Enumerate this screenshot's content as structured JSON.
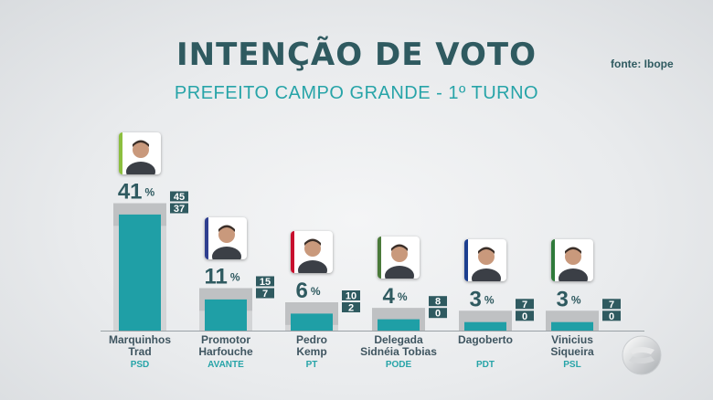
{
  "header": {
    "title": "INTENÇÃO DE VOTO",
    "subtitle": "PREFEITO CAMPO GRANDE - 1º TURNO",
    "source": "fonte: Ibope"
  },
  "colors": {
    "bar": "#1f9fa6",
    "range": "#bfc1c3",
    "label_box": "#2f5a60",
    "name": "#3f5560",
    "party": "#27a4a8",
    "value": "#2f5a60"
  },
  "chart_data": {
    "type": "bar",
    "title": "INTENÇÃO DE VOTO",
    "subtitle": "PREFEITO CAMPO GRANDE - 1º TURNO",
    "value_suffix": "%",
    "ylim": [
      0,
      45
    ],
    "grid": false,
    "categories": [
      "Marquinhos Trad",
      "Promotor Harfouche",
      "Pedro Kemp",
      "Delegada Sidnéia Tobias",
      "Dagoberto",
      "Vinicius Siqueira"
    ],
    "series": [
      {
        "values": [
          41,
          11,
          6,
          4,
          3,
          3
        ],
        "upper": [
          45,
          15,
          10,
          8,
          7,
          7
        ],
        "lower": [
          37,
          7,
          2,
          0,
          0,
          0
        ]
      }
    ],
    "candidates": [
      {
        "name_line1": "Marquinhos",
        "name_line2": "Trad",
        "party": "PSD",
        "value": 41,
        "upper": 45,
        "lower": 37,
        "party_color": "#8cbf3f"
      },
      {
        "name_line1": "Promotor",
        "name_line2": "Harfouche",
        "party": "AVANTE",
        "value": 11,
        "upper": 15,
        "lower": 7,
        "party_color": "#2f3f8f"
      },
      {
        "name_line1": "Pedro",
        "name_line2": "Kemp",
        "party": "PT",
        "value": 6,
        "upper": 10,
        "lower": 2,
        "party_color": "#c8102e"
      },
      {
        "name_line1": "Delegada",
        "name_line2": "Sidnéia Tobias",
        "party": "PODE",
        "value": 4,
        "upper": 8,
        "lower": 0,
        "party_color": "#4a7a3a"
      },
      {
        "name_line1": "Dagoberto",
        "name_line2": "",
        "party": "PDT",
        "value": 3,
        "upper": 7,
        "lower": 0,
        "party_color": "#1d3f8f"
      },
      {
        "name_line1": "Vinicius",
        "name_line2": "Siqueira",
        "party": "PSL",
        "value": 3,
        "upper": 7,
        "lower": 0,
        "party_color": "#2f7a3a"
      }
    ]
  }
}
